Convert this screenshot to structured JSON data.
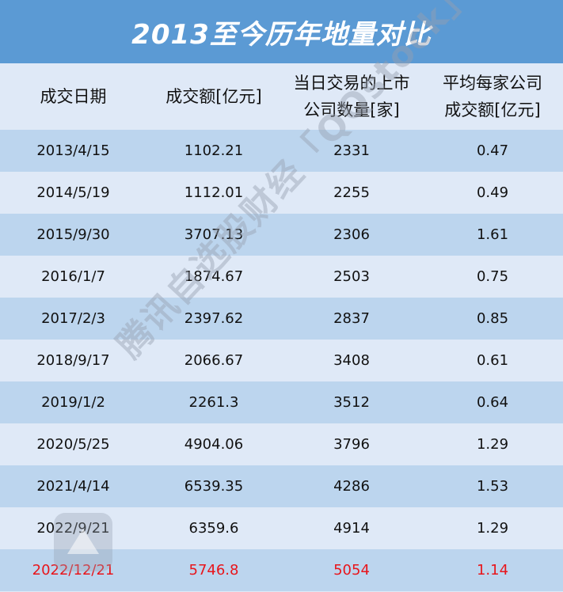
{
  "title": "2013至今历年地量对比",
  "watermark": "腾讯自选股财经「QQstock」",
  "colors": {
    "title_bg": "#5b9ad4",
    "row_even": "#bcd5ee",
    "row_odd": "#dfe9f7",
    "highlight": "#e8151b"
  },
  "chart_data": {
    "type": "table",
    "columns": [
      {
        "line1": "成交日期",
        "line2": ""
      },
      {
        "line1": "成交额[亿元]",
        "line2": ""
      },
      {
        "line1": "当日交易的上市",
        "line2": "公司数量[家]"
      },
      {
        "line1": "平均每家公司",
        "line2": "成交额[亿元]"
      }
    ],
    "rows": [
      [
        "2013/4/15",
        "1102.21",
        "2331",
        "0.47"
      ],
      [
        "2014/5/19",
        "1112.01",
        "2255",
        "0.49"
      ],
      [
        "2015/9/30",
        "3707.13",
        "2306",
        "1.61"
      ],
      [
        "2016/1/7",
        "1874.67",
        "2503",
        "0.75"
      ],
      [
        "2017/2/3",
        "2397.62",
        "2837",
        "0.85"
      ],
      [
        "2018/9/17",
        "2066.67",
        "3408",
        "0.61"
      ],
      [
        "2019/1/2",
        "2261.3",
        "3512",
        "0.64"
      ],
      [
        "2020/5/25",
        "4904.06",
        "3796",
        "1.29"
      ],
      [
        "2021/4/14",
        "6539.35",
        "4286",
        "1.53"
      ],
      [
        "2022/9/21",
        "6359.6",
        "4914",
        "1.29"
      ],
      [
        "2022/12/21",
        "5746.8",
        "5054",
        "1.14"
      ]
    ],
    "highlight_row": 10
  }
}
